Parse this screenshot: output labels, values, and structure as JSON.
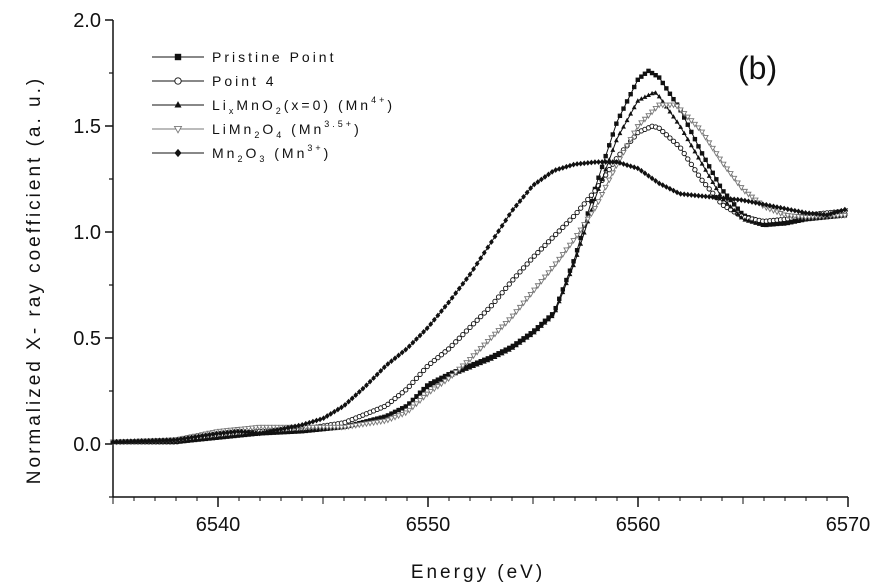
{
  "chart_data": {
    "type": "line",
    "panel_label": "(b)",
    "xlabel": "Energy (eV)",
    "ylabel": "Normalized X- ray coefficient (a. u.)",
    "xlim": [
      6535,
      6570
    ],
    "ylim": [
      -0.25,
      2.0
    ],
    "x_ticks": [
      6540,
      6550,
      6560,
      6570
    ],
    "y_ticks": [
      0.0,
      0.5,
      1.0,
      1.5,
      2.0
    ],
    "x_tick_labels": [
      "6540",
      "6550",
      "6560",
      "6570"
    ],
    "y_tick_labels": [
      "0.0",
      "0.5",
      "1.0",
      "1.5",
      "2.0"
    ],
    "grid": false,
    "legend_position": "top-left",
    "legend": [
      {
        "base": "Pristine Point",
        "marker": "square-filled"
      },
      {
        "base": "Point 4",
        "marker": "circle-open"
      },
      {
        "base": "Li",
        "sub": "x",
        "rest": "MnO",
        "sub2": "2",
        "tail": "(x=0) (Mn",
        "sup": "4+",
        "close": ")",
        "marker": "triangle-filled"
      },
      {
        "base": "LiMn",
        "sub": "2",
        "rest": "O",
        "sub2": "4",
        "tail": " (Mn",
        "sup": "3.5+",
        "close": ")",
        "marker": "triangle-down-open"
      },
      {
        "base": "Mn",
        "sub": "2",
        "rest": "O",
        "sub2": "3",
        "tail": " (Mn",
        "sup": "3+",
        "close": ")",
        "marker": "diamond-filled"
      }
    ],
    "series": [
      {
        "marker": "square-filled",
        "color": "#111111",
        "points": [
          [
            6535,
            0.01
          ],
          [
            6538,
            0.01
          ],
          [
            6540,
            0.03
          ],
          [
            6542,
            0.05
          ],
          [
            6544,
            0.06
          ],
          [
            6546,
            0.08
          ],
          [
            6548,
            0.13
          ],
          [
            6549,
            0.18
          ],
          [
            6550,
            0.28
          ],
          [
            6551,
            0.33
          ],
          [
            6552,
            0.37
          ],
          [
            6553,
            0.41
          ],
          [
            6554,
            0.46
          ],
          [
            6555,
            0.53
          ],
          [
            6556,
            0.62
          ],
          [
            6557,
            0.88
          ],
          [
            6558,
            1.22
          ],
          [
            6559,
            1.52
          ],
          [
            6560,
            1.72
          ],
          [
            6560.5,
            1.76
          ],
          [
            6561,
            1.73
          ],
          [
            6562,
            1.58
          ],
          [
            6563,
            1.38
          ],
          [
            6564,
            1.2
          ],
          [
            6565,
            1.08
          ],
          [
            6566,
            1.04
          ],
          [
            6567,
            1.04
          ],
          [
            6568,
            1.06
          ],
          [
            6570,
            1.08
          ]
        ]
      },
      {
        "marker": "circle-open",
        "color": "#111111",
        "points": [
          [
            6535,
            0.01
          ],
          [
            6538,
            0.01
          ],
          [
            6540,
            0.04
          ],
          [
            6542,
            0.06
          ],
          [
            6544,
            0.07
          ],
          [
            6546,
            0.1
          ],
          [
            6548,
            0.18
          ],
          [
            6549,
            0.26
          ],
          [
            6550,
            0.37
          ],
          [
            6551,
            0.45
          ],
          [
            6552,
            0.55
          ],
          [
            6553,
            0.65
          ],
          [
            6554,
            0.77
          ],
          [
            6555,
            0.88
          ],
          [
            6556,
            0.98
          ],
          [
            6557,
            1.08
          ],
          [
            6558,
            1.2
          ],
          [
            6559,
            1.35
          ],
          [
            6560,
            1.47
          ],
          [
            6560.7,
            1.5
          ],
          [
            6561,
            1.49
          ],
          [
            6562,
            1.4
          ],
          [
            6563,
            1.25
          ],
          [
            6564,
            1.13
          ],
          [
            6565,
            1.07
          ],
          [
            6566,
            1.05
          ],
          [
            6567,
            1.06
          ],
          [
            6568,
            1.08
          ],
          [
            6570,
            1.1
          ]
        ]
      },
      {
        "marker": "triangle-filled",
        "color": "#111111",
        "points": [
          [
            6535,
            0.01
          ],
          [
            6538,
            0.01
          ],
          [
            6540,
            0.03
          ],
          [
            6542,
            0.05
          ],
          [
            6544,
            0.06
          ],
          [
            6546,
            0.08
          ],
          [
            6548,
            0.13
          ],
          [
            6549,
            0.18
          ],
          [
            6550,
            0.27
          ],
          [
            6551,
            0.32
          ],
          [
            6552,
            0.36
          ],
          [
            6553,
            0.4
          ],
          [
            6554,
            0.45
          ],
          [
            6555,
            0.52
          ],
          [
            6556,
            0.61
          ],
          [
            6557,
            0.86
          ],
          [
            6558,
            1.17
          ],
          [
            6559,
            1.44
          ],
          [
            6560,
            1.62
          ],
          [
            6560.8,
            1.66
          ],
          [
            6561,
            1.64
          ],
          [
            6562,
            1.5
          ],
          [
            6563,
            1.33
          ],
          [
            6564,
            1.16
          ],
          [
            6565,
            1.06
          ],
          [
            6566,
            1.03
          ],
          [
            6567,
            1.04
          ],
          [
            6568,
            1.06
          ],
          [
            6570,
            1.08
          ]
        ]
      },
      {
        "marker": "triangle-down-open",
        "color": "#777777",
        "points": [
          [
            6535,
            0.01
          ],
          [
            6538,
            0.02
          ],
          [
            6540,
            0.06
          ],
          [
            6542,
            0.08
          ],
          [
            6544,
            0.08
          ],
          [
            6546,
            0.08
          ],
          [
            6548,
            0.11
          ],
          [
            6549,
            0.15
          ],
          [
            6550,
            0.24
          ],
          [
            6551,
            0.31
          ],
          [
            6552,
            0.4
          ],
          [
            6553,
            0.5
          ],
          [
            6554,
            0.6
          ],
          [
            6555,
            0.72
          ],
          [
            6556,
            0.84
          ],
          [
            6557,
            0.97
          ],
          [
            6558,
            1.12
          ],
          [
            6559,
            1.32
          ],
          [
            6560,
            1.5
          ],
          [
            6561,
            1.6
          ],
          [
            6561.8,
            1.6
          ],
          [
            6562,
            1.58
          ],
          [
            6563,
            1.48
          ],
          [
            6564,
            1.33
          ],
          [
            6565,
            1.2
          ],
          [
            6566,
            1.12
          ],
          [
            6567,
            1.08
          ],
          [
            6568,
            1.07
          ],
          [
            6570,
            1.08
          ]
        ]
      },
      {
        "marker": "diamond-filled",
        "color": "#111111",
        "points": [
          [
            6535,
            0.01
          ],
          [
            6538,
            0.02
          ],
          [
            6540,
            0.05
          ],
          [
            6541,
            0.06
          ],
          [
            6542,
            0.05
          ],
          [
            6543,
            0.07
          ],
          [
            6544,
            0.09
          ],
          [
            6545,
            0.12
          ],
          [
            6546,
            0.18
          ],
          [
            6547,
            0.27
          ],
          [
            6548,
            0.37
          ],
          [
            6549,
            0.45
          ],
          [
            6550,
            0.55
          ],
          [
            6551,
            0.67
          ],
          [
            6552,
            0.8
          ],
          [
            6553,
            0.95
          ],
          [
            6554,
            1.1
          ],
          [
            6555,
            1.22
          ],
          [
            6556,
            1.29
          ],
          [
            6557,
            1.32
          ],
          [
            6558,
            1.33
          ],
          [
            6559,
            1.33
          ],
          [
            6560,
            1.3
          ],
          [
            6561,
            1.23
          ],
          [
            6562,
            1.18
          ],
          [
            6563,
            1.17
          ],
          [
            6564,
            1.16
          ],
          [
            6565,
            1.15
          ],
          [
            6566,
            1.13
          ],
          [
            6567,
            1.11
          ],
          [
            6568,
            1.09
          ],
          [
            6569,
            1.08
          ],
          [
            6570,
            1.11
          ]
        ]
      }
    ]
  }
}
